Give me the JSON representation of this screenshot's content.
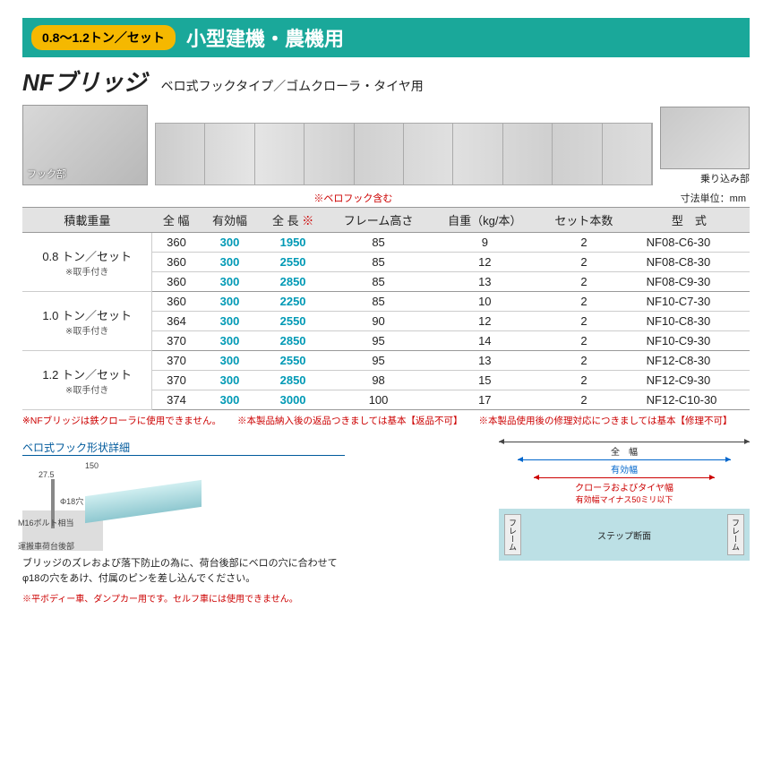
{
  "header": {
    "badge": "0.8～1.2トン／セット",
    "title": "小型建機・農機用"
  },
  "product": {
    "name": "NFブリッジ",
    "subtitle": "ベロ式フックタイプ／ゴムクローラ・タイヤ用"
  },
  "image_labels": {
    "hook": "フック部",
    "entry": "乗り込み部"
  },
  "table_notes": {
    "include_hook": "※ベロフック含む",
    "unit": "寸法単位：mm",
    "length_mark": "※"
  },
  "columns": {
    "load": "積載重量",
    "full_width": "全 幅",
    "eff_width": "有効幅",
    "full_length": "全 長",
    "frame_h": "フレーム高さ",
    "weight": "自重（kg/本）",
    "set_qty": "セット本数",
    "model": "型　式"
  },
  "groups": [
    {
      "label": "0.8 トン／セット",
      "sub": "※取手付き",
      "rows": [
        {
          "fw": "360",
          "ew": "300",
          "fl": "1950",
          "fh": "85",
          "wt": "9",
          "qty": "2",
          "model": "NF08-C6-30"
        },
        {
          "fw": "360",
          "ew": "300",
          "fl": "2550",
          "fh": "85",
          "wt": "12",
          "qty": "2",
          "model": "NF08-C8-30"
        },
        {
          "fw": "360",
          "ew": "300",
          "fl": "2850",
          "fh": "85",
          "wt": "13",
          "qty": "2",
          "model": "NF08-C9-30"
        }
      ]
    },
    {
      "label": "1.0 トン／セット",
      "sub": "※取手付き",
      "rows": [
        {
          "fw": "360",
          "ew": "300",
          "fl": "2250",
          "fh": "85",
          "wt": "10",
          "qty": "2",
          "model": "NF10-C7-30"
        },
        {
          "fw": "364",
          "ew": "300",
          "fl": "2550",
          "fh": "90",
          "wt": "12",
          "qty": "2",
          "model": "NF10-C8-30"
        },
        {
          "fw": "370",
          "ew": "300",
          "fl": "2850",
          "fh": "95",
          "wt": "14",
          "qty": "2",
          "model": "NF10-C9-30"
        }
      ]
    },
    {
      "label": "1.2 トン／セット",
      "sub": "※取手付き",
      "rows": [
        {
          "fw": "370",
          "ew": "300",
          "fl": "2550",
          "fh": "95",
          "wt": "13",
          "qty": "2",
          "model": "NF12-C8-30"
        },
        {
          "fw": "370",
          "ew": "300",
          "fl": "2850",
          "fh": "98",
          "wt": "15",
          "qty": "2",
          "model": "NF12-C9-30"
        },
        {
          "fw": "374",
          "ew": "300",
          "fl": "3000",
          "fh": "100",
          "wt": "17",
          "qty": "2",
          "model": "NF12-C10-30"
        }
      ]
    }
  ],
  "warnings": {
    "w1": "※NFブリッジは鉄クローラに使用できません。",
    "w2": "※本製品納入後の返品つきましては基本【返品不可】",
    "w3": "※本製品使用後の修理対応につきましては基本【修理不可】"
  },
  "hook_detail": {
    "title": "ベロ式フック形状詳細",
    "dims": {
      "d150": "150",
      "d275": "27.5",
      "hole": "Φ18穴",
      "bolt": "M16ボルト相当",
      "carrier": "運搬車荷台後部"
    },
    "text": "ブリッジのズレおよび落下防止の為に、荷台後部にベロの穴に合わせてφ18の穴をあけ、付属のピンを差し込んでください。",
    "note": "※平ボディー車、ダンプカー用です。セルフ車には使用できません。"
  },
  "width_diagram": {
    "full": "全　幅",
    "eff": "有効幅",
    "crawler": "クローラおよびタイヤ幅",
    "minus": "有効幅マイナス50ミリ以下",
    "step": "ステップ断面",
    "frame": "フレーム"
  },
  "colors": {
    "header_bg": "#1aa89a",
    "badge_bg": "#f5b800",
    "cyan": "#0099b5",
    "red": "#c00",
    "blue": "#0066cc"
  }
}
